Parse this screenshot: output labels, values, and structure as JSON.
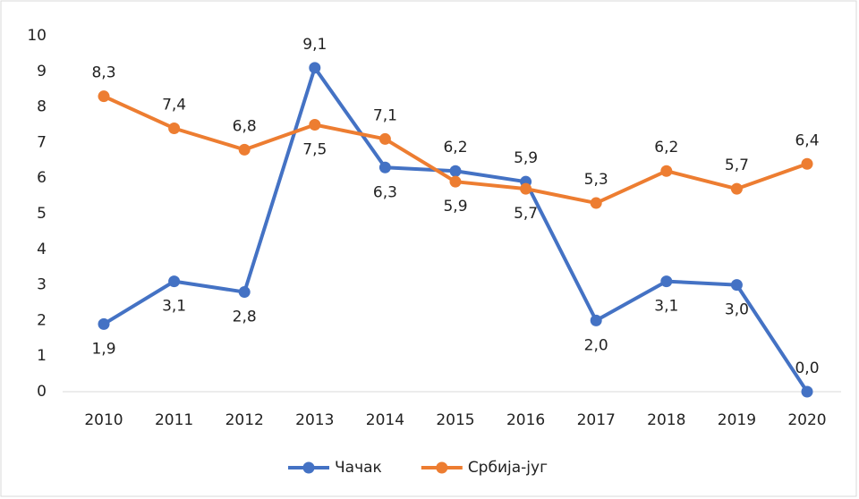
{
  "chart_data": {
    "type": "line",
    "categories": [
      "2010",
      "2011",
      "2012",
      "2013",
      "2014",
      "2015",
      "2016",
      "2017",
      "2018",
      "2019",
      "2020"
    ],
    "series": [
      {
        "name": "Чачак",
        "color": "#4472c4",
        "values": [
          1.9,
          3.1,
          2.8,
          9.1,
          6.3,
          6.2,
          5.9,
          2.0,
          3.1,
          3.0,
          0.0
        ],
        "value_labels": [
          "1,9",
          "3,1",
          "2,8",
          "9,1",
          "6,3",
          "6,2",
          "5,9",
          "2,0",
          "3,1",
          "3,0",
          "0,0"
        ]
      },
      {
        "name": "Србија-југ",
        "color": "#ed7d31",
        "values": [
          8.3,
          7.4,
          6.8,
          7.5,
          7.1,
          5.9,
          5.7,
          5.3,
          6.2,
          5.7,
          6.4
        ],
        "value_labels": [
          "8,3",
          "7,4",
          "6,8",
          "7,5",
          "7,1",
          "5,9",
          "5,7",
          "5,3",
          "6,2",
          "5,7",
          "6,4"
        ]
      }
    ],
    "ylim": [
      0,
      10
    ],
    "yticks": [
      0,
      1,
      2,
      3,
      4,
      5,
      6,
      7,
      8,
      9,
      10
    ],
    "grid": false,
    "legend": "bottom"
  }
}
